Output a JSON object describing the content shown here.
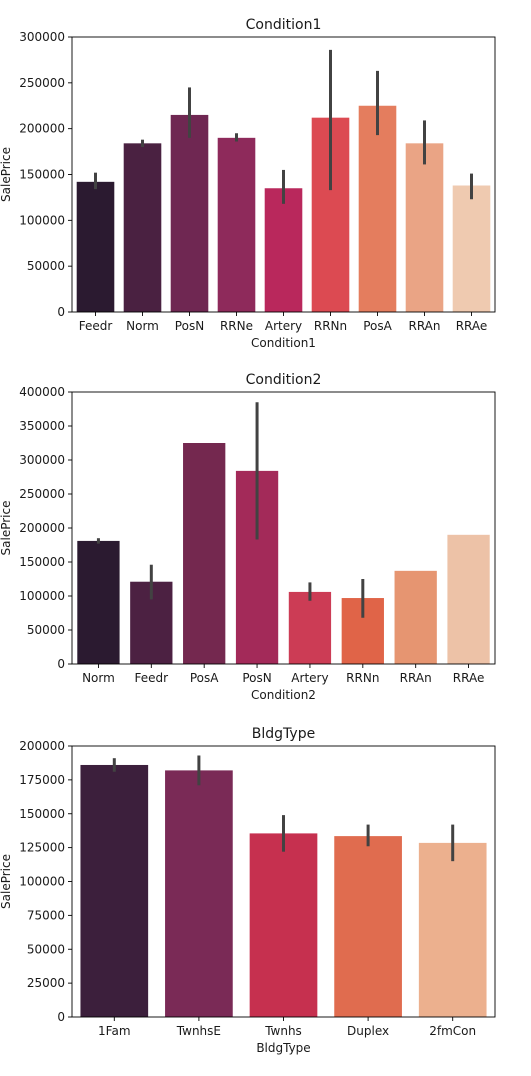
{
  "chart_data": [
    {
      "type": "bar",
      "title": "Condition1",
      "xlabel": "Condition1",
      "ylabel": "SalePrice",
      "ylim": [
        0,
        300000
      ],
      "yticks": [
        0,
        50000,
        100000,
        150000,
        200000,
        250000,
        300000
      ],
      "categories": [
        "Feedr",
        "Norm",
        "PosN",
        "RRNe",
        "Artery",
        "RRNn",
        "PosA",
        "RRAn",
        "RRAe"
      ],
      "values": [
        142000,
        184000,
        215000,
        190000,
        135000,
        212000,
        225000,
        184000,
        138000
      ],
      "error_low": [
        134000,
        180000,
        190000,
        186000,
        118000,
        133000,
        193000,
        161000,
        123000
      ],
      "error_high": [
        152000,
        188000,
        245000,
        195000,
        155000,
        286000,
        263000,
        209000,
        151000
      ],
      "colors": [
        "#2b1a30",
        "#4a2141",
        "#6f2752",
        "#8e2a5b",
        "#b9285c",
        "#dc4a52",
        "#e47d5e",
        "#eaa485",
        "#efcab0"
      ],
      "grid": false
    },
    {
      "type": "bar",
      "title": "Condition2",
      "xlabel": "Condition2",
      "ylabel": "SalePrice",
      "ylim": [
        0,
        400000
      ],
      "yticks": [
        0,
        50000,
        100000,
        150000,
        200000,
        250000,
        300000,
        350000,
        400000
      ],
      "categories": [
        "Norm",
        "Feedr",
        "PosA",
        "PosN",
        "Artery",
        "RRNn",
        "RRAn",
        "RRAe"
      ],
      "values": [
        181000,
        121000,
        325000,
        284000,
        106000,
        97000,
        137000,
        190000
      ],
      "error_low": [
        177000,
        95000,
        null,
        183000,
        93000,
        68000,
        null,
        null
      ],
      "error_high": [
        185000,
        146000,
        null,
        385000,
        120000,
        125000,
        null,
        null
      ],
      "colors": [
        "#2b1a30",
        "#4c2142",
        "#74284f",
        "#a32a59",
        "#cc3c55",
        "#e06448",
        "#e69571",
        "#edc2a7"
      ],
      "grid": false
    },
    {
      "type": "bar",
      "title": "BldgType",
      "xlabel": "BldgType",
      "ylabel": "SalePrice",
      "ylim": [
        0,
        200000
      ],
      "yticks": [
        0,
        25000,
        50000,
        75000,
        100000,
        125000,
        150000,
        175000,
        200000
      ],
      "categories": [
        "1Fam",
        "TwnhsE",
        "Twnhs",
        "Duplex",
        "2fmCon"
      ],
      "values": [
        186000,
        182000,
        135500,
        133500,
        128500
      ],
      "error_low": [
        181000,
        171000,
        122000,
        126000,
        115000
      ],
      "error_high": [
        191000,
        193000,
        149000,
        142000,
        142000
      ],
      "colors": [
        "#3c1f3c",
        "#7a2a56",
        "#c6304f",
        "#e06c4f",
        "#ecb08e"
      ],
      "grid": false
    }
  ]
}
